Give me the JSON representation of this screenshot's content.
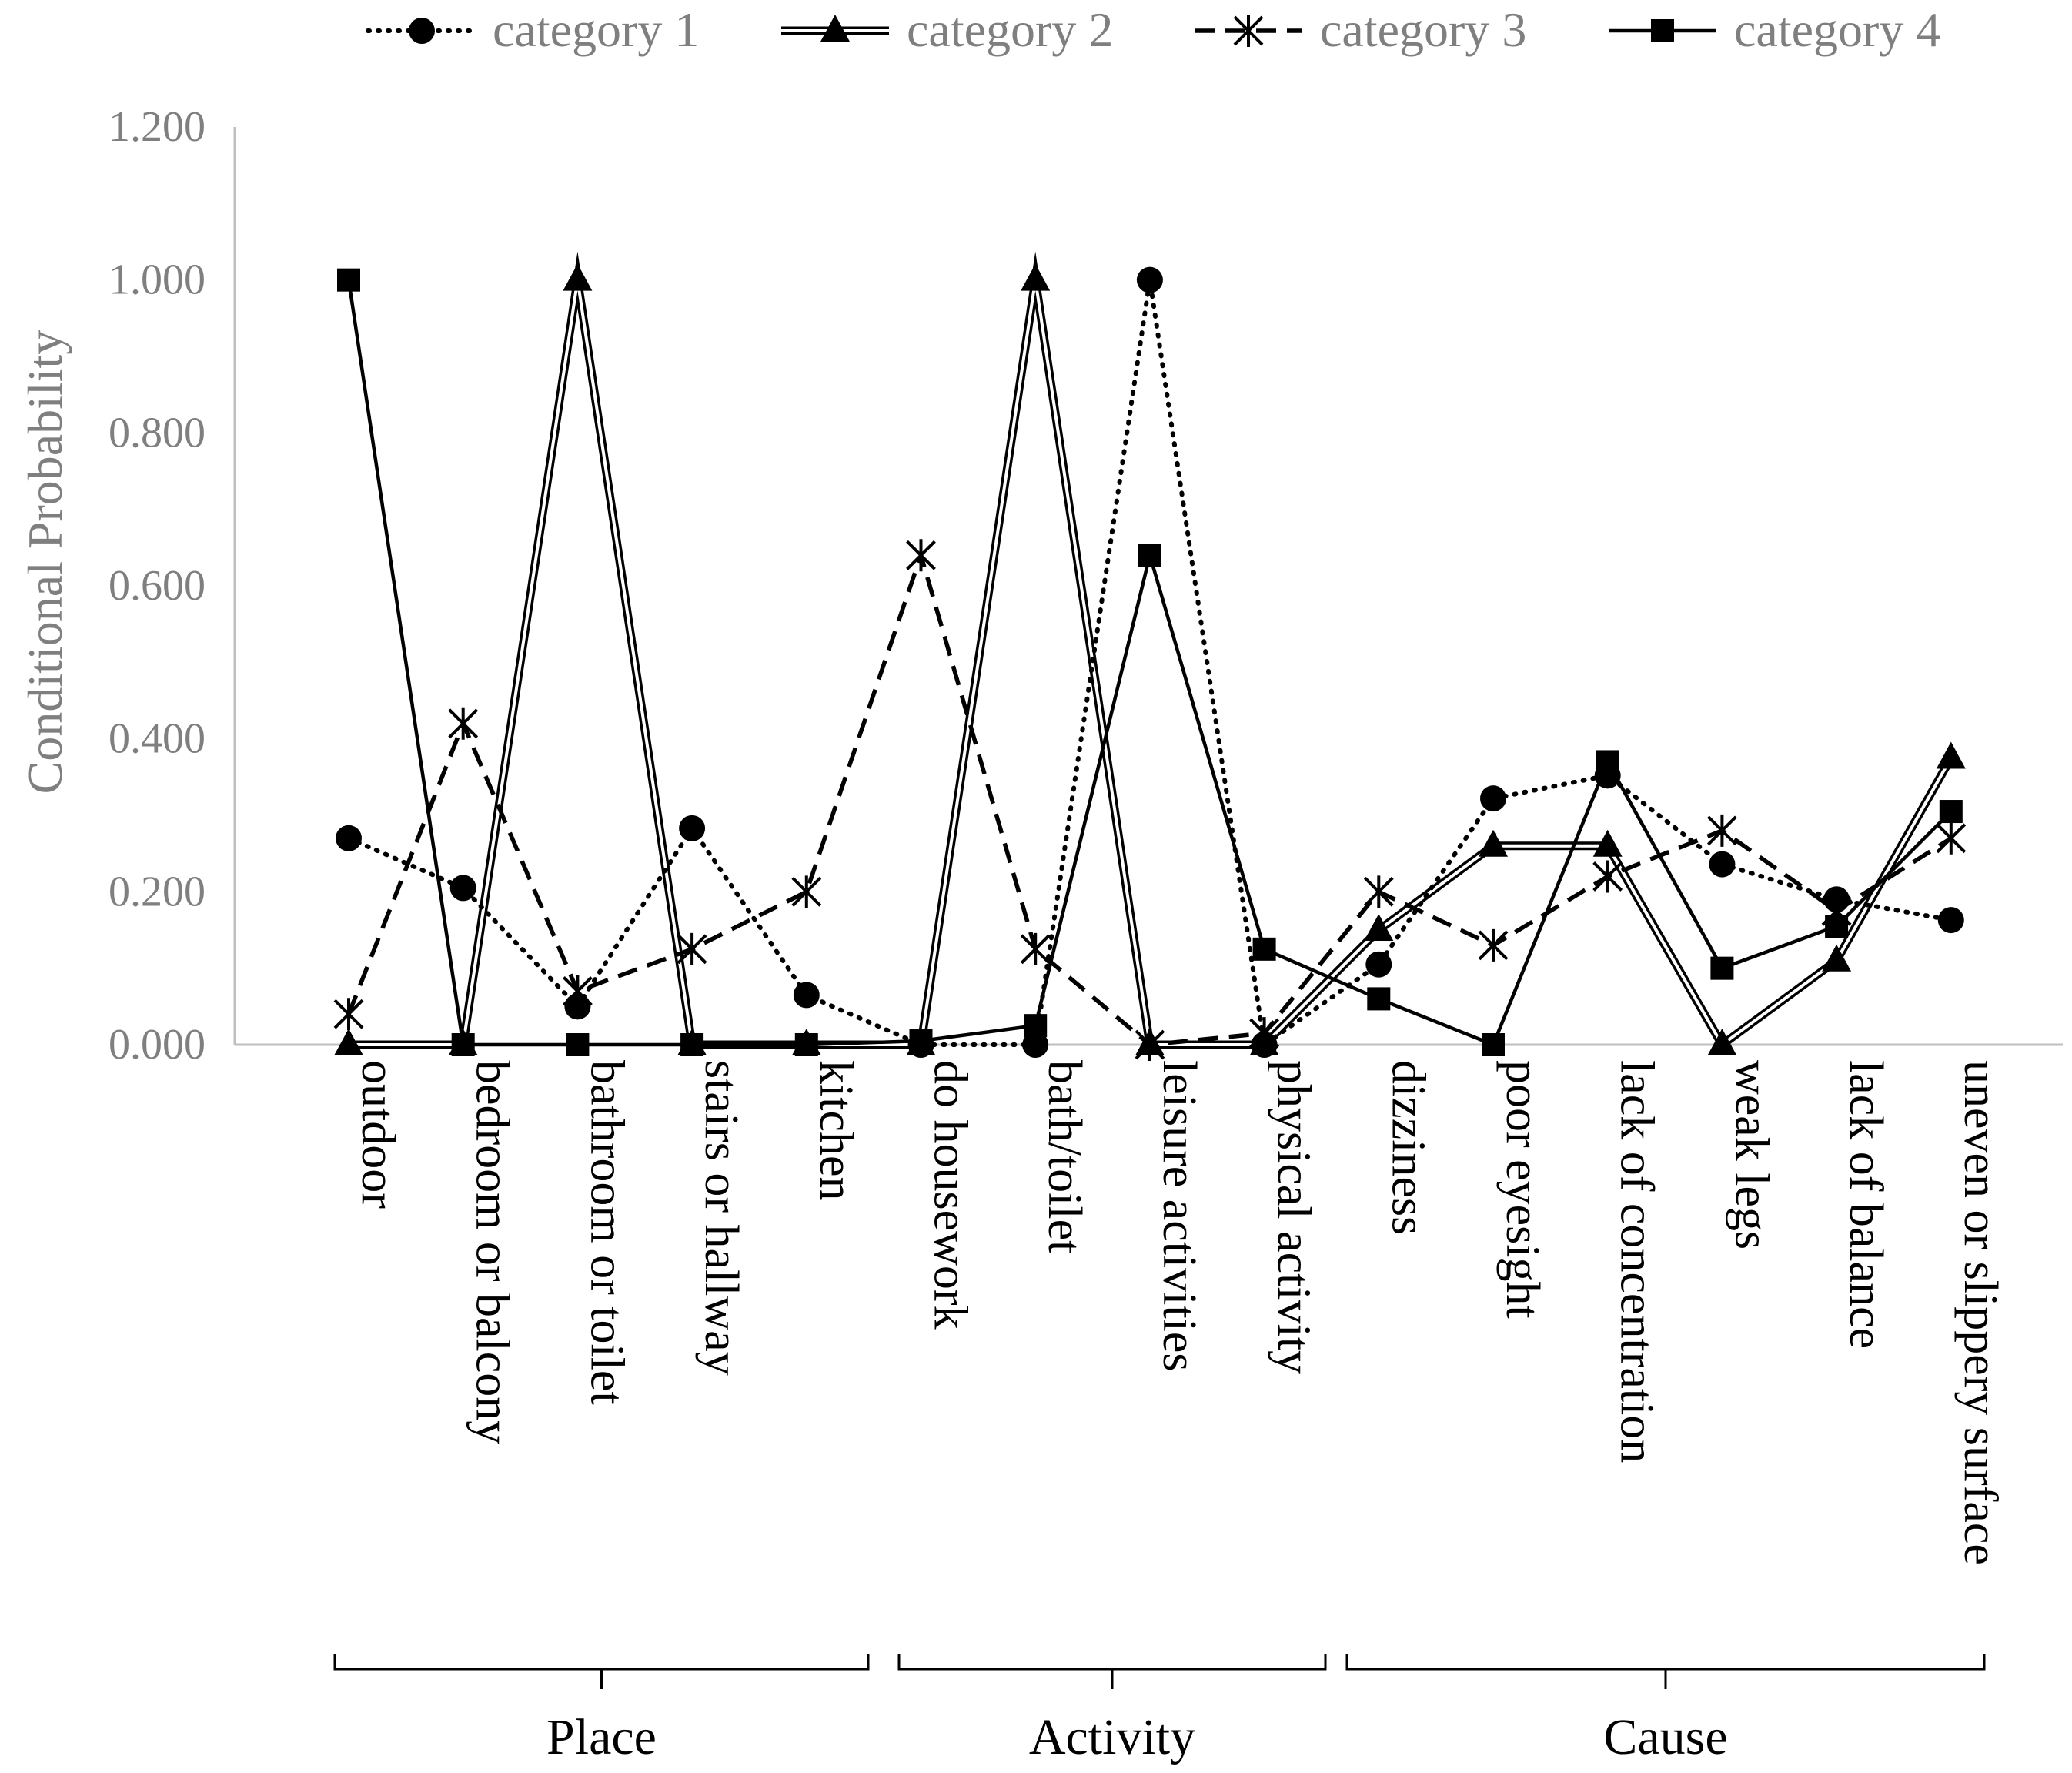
{
  "chart_data": {
    "type": "line",
    "title": "",
    "ylabel": "Conditional Probability",
    "xlabel": "",
    "ylim": [
      0,
      1.2
    ],
    "yticks": [
      "0.000",
      "0.200",
      "0.400",
      "0.600",
      "0.800",
      "1.000",
      "1.200"
    ],
    "ytick_values": [
      0,
      0.2,
      0.4,
      0.6,
      0.8,
      1.0,
      1.2
    ],
    "grid": false,
    "legend_position": "top",
    "categories": [
      "outdoor",
      "bedroom or balcony",
      "bathroom or toilet",
      "stairs or hallway",
      "kitchen",
      "do housework",
      "bath/toilet",
      "leisure activities",
      "physical activity",
      "dizziness",
      "poor eyesight",
      "lack of concentration",
      "weak legs",
      "lack of balance",
      "uneven or slippery surface"
    ],
    "groups": [
      {
        "name": "Place",
        "start": 0,
        "end": 4
      },
      {
        "name": "Activity",
        "start": 5,
        "end": 8
      },
      {
        "name": "Cause",
        "start": 9,
        "end": 14
      }
    ],
    "series": [
      {
        "name": "category 1",
        "style": "dotted",
        "marker": "circle",
        "values": [
          0.27,
          0.205,
          0.05,
          0.283,
          0.065,
          0.0,
          0.0,
          1.0,
          0.0,
          0.105,
          0.322,
          0.352,
          0.236,
          0.19,
          0.163
        ]
      },
      {
        "name": "category 2",
        "style": "double",
        "marker": "triangle",
        "values": [
          0.0,
          0.0,
          1.0,
          0.0,
          0.0,
          0.0,
          1.0,
          0.0,
          0.0,
          0.15,
          0.26,
          0.26,
          0.0,
          0.11,
          0.375
        ]
      },
      {
        "name": "category 3",
        "style": "dashed",
        "marker": "asterisk",
        "values": [
          0.04,
          0.42,
          0.07,
          0.125,
          0.2,
          0.64,
          0.125,
          0.0,
          0.015,
          0.2,
          0.13,
          0.22,
          0.28,
          0.175,
          0.27
        ]
      },
      {
        "name": "category 4",
        "style": "solid",
        "marker": "square",
        "values": [
          1.0,
          0.0,
          0.0,
          0.0,
          0.0,
          0.005,
          0.025,
          0.64,
          0.125,
          0.06,
          0.0,
          0.37,
          0.1,
          0.155,
          0.305
        ]
      }
    ]
  }
}
